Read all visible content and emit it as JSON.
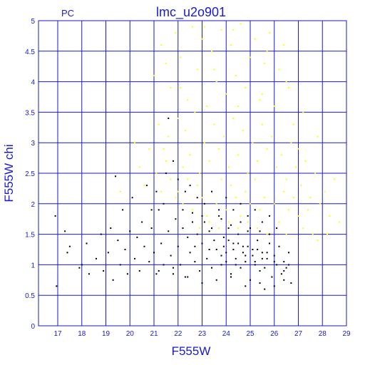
{
  "chart_data": {
    "type": "scatter",
    "title": "lmc_u2o901",
    "corner_label": "PC",
    "xlabel": "F555W",
    "ylabel": "F555W  chi",
    "xlim": [
      16.2,
      29
    ],
    "ylim": [
      0,
      5
    ],
    "xticks": [
      17,
      18,
      19,
      20,
      21,
      22,
      23,
      24,
      25,
      26,
      27,
      28,
      29
    ],
    "yticks": [
      0,
      0.5,
      1,
      1.5,
      2,
      2.5,
      3,
      3.5,
      4,
      4.5,
      5
    ],
    "xtick_labels": [
      "17",
      "18",
      "19",
      "20",
      "21",
      "22",
      "23",
      "24",
      "25",
      "26",
      "27",
      "28",
      "29"
    ],
    "ytick_labels": [
      "0",
      "0.5",
      "1",
      "1.5",
      "2",
      "2.5",
      "3",
      "3.5",
      "4",
      "4.5",
      "5"
    ],
    "grid": true,
    "colors": {
      "axis": "#1a1acc",
      "grid": "#1a1acc",
      "background": "#ffffff"
    },
    "series": [
      {
        "color": "#ffff00",
        "description_of_distribution": "low-quality fits, chi mostly 1.5-5",
        "points": [
          [
            21.0,
            4.1
          ],
          [
            21.3,
            4.6
          ],
          [
            21.5,
            4.3
          ],
          [
            21.7,
            3.9
          ],
          [
            21.9,
            4.8
          ],
          [
            22.1,
            4.4
          ],
          [
            22.4,
            3.7
          ],
          [
            22.6,
            4.9
          ],
          [
            22.8,
            4.2
          ],
          [
            23.0,
            4.7
          ],
          [
            23.2,
            3.6
          ],
          [
            23.4,
            4.5
          ],
          [
            23.6,
            4.0
          ],
          [
            23.8,
            4.85
          ],
          [
            24.0,
            3.8
          ],
          [
            24.2,
            4.6
          ],
          [
            24.4,
            4.1
          ],
          [
            24.6,
            4.95
          ],
          [
            24.8,
            3.9
          ],
          [
            25.0,
            4.4
          ],
          [
            25.2,
            4.7
          ],
          [
            25.4,
            3.7
          ],
          [
            25.6,
            4.3
          ],
          [
            25.8,
            4.8
          ],
          [
            26.0,
            3.6
          ],
          [
            26.2,
            4.2
          ],
          [
            26.4,
            4.6
          ],
          [
            26.6,
            3.9
          ],
          [
            27.2,
            3.5
          ],
          [
            27.8,
            3.1
          ],
          [
            21.2,
            3.3
          ],
          [
            21.4,
            2.9
          ],
          [
            21.6,
            3.1
          ],
          [
            21.8,
            2.7
          ],
          [
            22.0,
            3.4
          ],
          [
            22.2,
            2.6
          ],
          [
            22.3,
            3.2
          ],
          [
            22.5,
            2.8
          ],
          [
            22.7,
            3.5
          ],
          [
            22.9,
            2.5
          ],
          [
            23.1,
            3.0
          ],
          [
            23.3,
            2.7
          ],
          [
            23.5,
            3.3
          ],
          [
            23.7,
            2.9
          ],
          [
            23.9,
            3.1
          ],
          [
            24.1,
            2.6
          ],
          [
            24.3,
            3.4
          ],
          [
            24.5,
            2.8
          ],
          [
            24.7,
            3.2
          ],
          [
            24.9,
            2.5
          ],
          [
            25.1,
            3.0
          ],
          [
            25.3,
            2.7
          ],
          [
            25.5,
            3.3
          ],
          [
            25.7,
            2.9
          ],
          [
            25.9,
            3.1
          ],
          [
            26.1,
            2.6
          ],
          [
            26.3,
            2.8
          ],
          [
            26.5,
            2.4
          ],
          [
            26.7,
            3.0
          ],
          [
            26.9,
            2.6
          ],
          [
            27.1,
            2.3
          ],
          [
            27.3,
            2.7
          ],
          [
            27.5,
            2.1
          ],
          [
            27.7,
            2.5
          ],
          [
            27.9,
            2.0
          ],
          [
            28.1,
            2.2
          ],
          [
            28.3,
            1.8
          ],
          [
            28.5,
            2.4
          ],
          [
            28.7,
            1.7
          ],
          [
            28.2,
            1.5
          ],
          [
            22.0,
            2.2
          ],
          [
            22.2,
            2.0
          ],
          [
            22.4,
            2.4
          ],
          [
            22.6,
            1.9
          ],
          [
            22.8,
            2.3
          ],
          [
            23.0,
            2.1
          ],
          [
            23.2,
            1.8
          ],
          [
            23.4,
            2.2
          ],
          [
            23.6,
            2.0
          ],
          [
            23.8,
            2.4
          ],
          [
            24.0,
            1.9
          ],
          [
            24.2,
            2.3
          ],
          [
            24.4,
            2.1
          ],
          [
            24.6,
            1.8
          ],
          [
            24.8,
            2.2
          ],
          [
            25.0,
            2.0
          ],
          [
            25.2,
            2.4
          ],
          [
            25.4,
            1.9
          ],
          [
            25.6,
            2.1
          ],
          [
            25.8,
            1.8
          ],
          [
            26.0,
            2.0
          ],
          [
            26.2,
            1.7
          ],
          [
            26.4,
            2.2
          ],
          [
            26.6,
            1.9
          ],
          [
            26.8,
            2.1
          ],
          [
            27.0,
            1.8
          ],
          [
            27.2,
            1.6
          ],
          [
            27.4,
            1.9
          ],
          [
            27.6,
            1.5
          ],
          [
            27.8,
            1.4
          ],
          [
            22.9,
            1.6
          ],
          [
            23.3,
            1.7
          ],
          [
            23.7,
            1.6
          ],
          [
            24.1,
            1.7
          ],
          [
            24.5,
            1.6
          ],
          [
            24.9,
            1.7
          ],
          [
            25.3,
            1.6
          ],
          [
            25.7,
            1.5
          ],
          [
            26.1,
            1.6
          ],
          [
            26.5,
            1.5
          ],
          [
            20.4,
            2.6
          ],
          [
            20.6,
            2.3
          ],
          [
            20.8,
            2.9
          ],
          [
            19.6,
            2.2
          ],
          [
            20.2,
            3.0
          ],
          [
            21.1,
            2.5
          ],
          [
            21.3,
            2.2
          ],
          [
            21.5,
            2.7
          ],
          [
            21.7,
            2.4
          ],
          [
            21.9,
            2.1
          ],
          [
            23.5,
            4.2
          ],
          [
            24.5,
            3.6
          ],
          [
            25.5,
            3.8
          ],
          [
            22.1,
            3.9
          ],
          [
            26.8,
            3.3
          ],
          [
            24.3,
            4.85
          ],
          [
            23.1,
            4.9
          ],
          [
            25.7,
            4.5
          ],
          [
            26.5,
            4.0
          ],
          [
            27.0,
            2.9
          ]
        ]
      },
      {
        "color": "#000000",
        "description_of_distribution": "good fits, chi mostly 0.6-2",
        "points": [
          [
            16.9,
            1.8
          ],
          [
            16.95,
            0.65
          ],
          [
            17.3,
            1.55
          ],
          [
            17.4,
            1.2
          ],
          [
            17.5,
            1.3
          ],
          [
            17.9,
            0.95
          ],
          [
            18.0,
            1.0
          ],
          [
            18.2,
            1.35
          ],
          [
            18.3,
            0.85
          ],
          [
            18.6,
            1.1
          ],
          [
            18.8,
            1.5
          ],
          [
            18.9,
            0.9
          ],
          [
            19.1,
            1.2
          ],
          [
            19.2,
            1.6
          ],
          [
            19.3,
            0.75
          ],
          [
            19.4,
            2.45
          ],
          [
            19.5,
            1.4
          ],
          [
            19.6,
            1.0
          ],
          [
            19.7,
            1.9
          ],
          [
            19.8,
            1.25
          ],
          [
            19.9,
            0.85
          ],
          [
            20.0,
            1.55
          ],
          [
            20.1,
            2.1
          ],
          [
            20.2,
            1.1
          ],
          [
            20.3,
            1.45
          ],
          [
            20.4,
            0.9
          ],
          [
            20.5,
            1.7
          ],
          [
            20.6,
            1.3
          ],
          [
            20.7,
            2.3
          ],
          [
            20.8,
            1.05
          ],
          [
            20.9,
            1.6
          ],
          [
            21.0,
            1.2
          ],
          [
            21.1,
            0.85
          ],
          [
            21.2,
            1.9
          ],
          [
            21.3,
            1.35
          ],
          [
            21.4,
            1.0
          ],
          [
            21.5,
            2.5
          ],
          [
            21.6,
            1.55
          ],
          [
            21.7,
            1.15
          ],
          [
            21.8,
            0.95
          ],
          [
            21.9,
            1.75
          ],
          [
            22.0,
            1.3
          ],
          [
            22.1,
            1.0
          ],
          [
            22.2,
            1.6
          ],
          [
            22.3,
            0.8
          ],
          [
            22.4,
            1.45
          ],
          [
            22.5,
            1.2
          ],
          [
            22.6,
            1.85
          ],
          [
            22.7,
            1.05
          ],
          [
            22.8,
            1.5
          ],
          [
            22.9,
            0.9
          ],
          [
            23.0,
            1.35
          ],
          [
            23.1,
            1.7
          ],
          [
            23.2,
            1.1
          ],
          [
            23.3,
            1.55
          ],
          [
            23.4,
            0.95
          ],
          [
            23.5,
            1.4
          ],
          [
            23.6,
            1.25
          ],
          [
            23.7,
            1.8
          ],
          [
            23.8,
            1.0
          ],
          [
            23.9,
            1.45
          ],
          [
            24.0,
            1.2
          ],
          [
            24.1,
            1.6
          ],
          [
            24.2,
            0.85
          ],
          [
            24.3,
            1.35
          ],
          [
            24.4,
            1.1
          ],
          [
            24.5,
            1.5
          ],
          [
            24.6,
            0.95
          ],
          [
            24.7,
            1.3
          ],
          [
            24.8,
            1.15
          ],
          [
            24.9,
            1.55
          ],
          [
            25.0,
            0.75
          ],
          [
            25.1,
            1.25
          ],
          [
            25.2,
            1.05
          ],
          [
            25.3,
            1.4
          ],
          [
            25.4,
            0.9
          ],
          [
            25.5,
            1.2
          ],
          [
            25.6,
            0.6
          ],
          [
            25.7,
            1.1
          ],
          [
            25.8,
            1.35
          ],
          [
            25.9,
            0.8
          ],
          [
            26.0,
            1.15
          ],
          [
            26.1,
            1.0
          ],
          [
            26.2,
            1.3
          ],
          [
            26.3,
            0.85
          ],
          [
            26.4,
            1.05
          ],
          [
            26.5,
            0.95
          ],
          [
            26.6,
            1.2
          ],
          [
            26.7,
            0.7
          ],
          [
            26.6,
            1.0
          ],
          [
            21.6,
            3.4
          ],
          [
            21.8,
            2.7
          ],
          [
            22.0,
            2.4
          ],
          [
            22.3,
            2.2
          ],
          [
            21.4,
            2.0
          ],
          [
            21.1,
            2.2
          ],
          [
            20.9,
            1.9
          ],
          [
            22.5,
            2.3
          ],
          [
            22.8,
            2.1
          ],
          [
            23.1,
            2.0
          ],
          [
            23.4,
            2.2
          ],
          [
            23.7,
            1.9
          ],
          [
            24.0,
            2.1
          ],
          [
            24.3,
            1.9
          ],
          [
            24.6,
            2.0
          ],
          [
            24.9,
            1.8
          ],
          [
            25.2,
            1.9
          ],
          [
            25.5,
            1.7
          ],
          [
            25.8,
            1.8
          ],
          [
            26.1,
            1.6
          ],
          [
            22.2,
            1.9
          ],
          [
            22.6,
            1.7
          ],
          [
            23.0,
            1.8
          ],
          [
            23.4,
            1.6
          ],
          [
            23.8,
            1.75
          ],
          [
            24.2,
            1.65
          ],
          [
            24.6,
            1.7
          ],
          [
            25.0,
            1.6
          ],
          [
            25.4,
            1.55
          ],
          [
            25.8,
            1.5
          ],
          [
            23.0,
            0.7
          ],
          [
            23.6,
            0.75
          ],
          [
            24.2,
            0.8
          ],
          [
            24.8,
            0.65
          ],
          [
            25.4,
            0.7
          ],
          [
            26.0,
            0.65
          ],
          [
            26.4,
            0.75
          ],
          [
            22.4,
            0.8
          ],
          [
            21.8,
            0.85
          ],
          [
            21.2,
            0.9
          ],
          [
            23.9,
            1.3
          ],
          [
            24.1,
            1.4
          ],
          [
            24.3,
            1.25
          ],
          [
            24.5,
            1.35
          ],
          [
            24.7,
            1.2
          ],
          [
            24.9,
            1.3
          ],
          [
            25.1,
            1.15
          ],
          [
            25.3,
            1.25
          ],
          [
            25.5,
            1.1
          ],
          [
            25.7,
            1.2
          ],
          [
            23.8,
            1.15
          ],
          [
            24.0,
            1.05
          ],
          [
            24.4,
            1.0
          ],
          [
            24.8,
            1.05
          ],
          [
            25.2,
            1.0
          ],
          [
            25.6,
            0.95
          ],
          [
            26.0,
            1.05
          ],
          [
            26.4,
            0.9
          ],
          [
            23.3,
            1.25
          ],
          [
            22.7,
            1.3
          ]
        ]
      }
    ]
  }
}
